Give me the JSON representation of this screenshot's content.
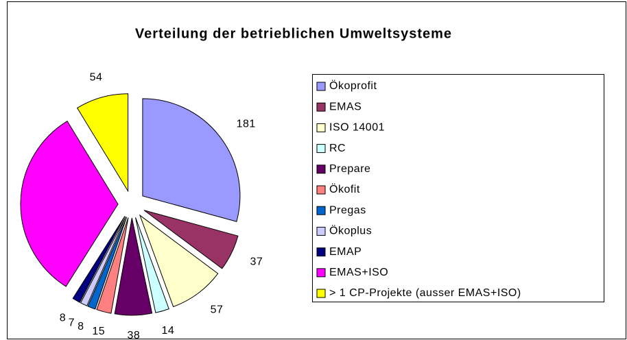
{
  "chart_data": {
    "type": "pie",
    "title": "Verteilung der betrieblichen Umweltsysteme",
    "categories": [
      "Ökoprofit",
      "EMAS",
      "ISO 14001",
      "RC",
      "Prepare",
      "Ökofit",
      "Pregas",
      "Ökoplus",
      "EMAP",
      "EMAS+ISO",
      "> 1 CP-Projekte (ausser EMAS+ISO)"
    ],
    "values": [
      181,
      37,
      57,
      14,
      38,
      15,
      8,
      7,
      8,
      200,
      54
    ],
    "colors": [
      "#9999ff",
      "#993366",
      "#ffffcc",
      "#ccffff",
      "#660066",
      "#ff8080",
      "#0066cc",
      "#ccccff",
      "#000080",
      "#ff00ff",
      "#ffff00"
    ]
  }
}
